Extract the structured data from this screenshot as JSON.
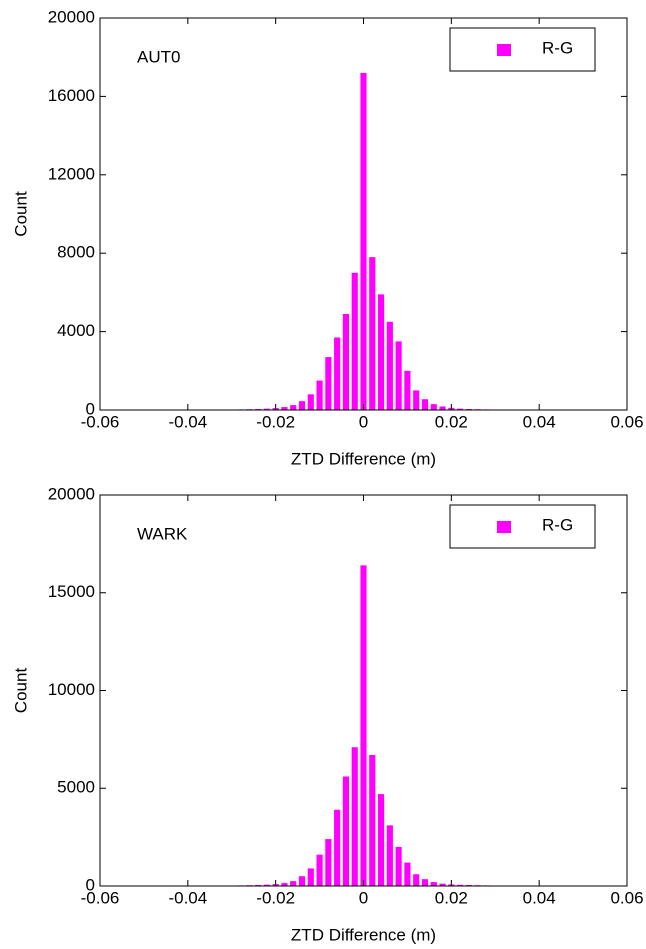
{
  "chart_data": [
    {
      "type": "histogram",
      "annotation": "AUT0",
      "xlabel": "ZTD Difference (m)",
      "ylabel": "Count",
      "bins": [
        -0.051,
        -0.049,
        -0.047,
        -0.045,
        -0.043,
        -0.041,
        -0.039,
        -0.037,
        -0.035,
        -0.033,
        -0.031,
        -0.029,
        -0.027,
        -0.025,
        -0.023,
        -0.021,
        -0.019,
        -0.017,
        -0.015,
        -0.013,
        -0.011,
        -0.009,
        -0.007,
        -0.005,
        -0.003,
        -0.001,
        0.001,
        0.003,
        0.005,
        0.007,
        0.009,
        0.011,
        0.013,
        0.015,
        0.017,
        0.019,
        0.021,
        0.023,
        0.025,
        0.027,
        0.029,
        0.031,
        0.033,
        0.035,
        0.037,
        0.039,
        0.041,
        0.043,
        0.045,
        0.047,
        0.049,
        0.051
      ],
      "series": [
        {
          "name": "R-G",
          "color": "#ff00ff",
          "values": [
            2,
            3,
            4,
            5,
            6,
            8,
            10,
            12,
            15,
            20,
            25,
            30,
            40,
            50,
            70,
            100,
            150,
            250,
            450,
            800,
            1500,
            2700,
            3700,
            4900,
            7000,
            17200,
            7800,
            5900,
            4500,
            3500,
            2000,
            1000,
            550,
            300,
            180,
            110,
            70,
            50,
            40,
            30,
            25,
            20,
            15,
            12,
            10,
            8,
            6,
            5,
            4,
            3,
            2
          ]
        }
      ],
      "xlim": [
        -0.06,
        0.06
      ],
      "xticks": [
        -0.06,
        -0.04,
        -0.02,
        0,
        0.02,
        0.04,
        0.06
      ],
      "ylim": [
        0,
        20000
      ],
      "yticks": [
        0,
        4000,
        8000,
        12000,
        16000,
        20000
      ]
    },
    {
      "type": "histogram",
      "annotation": "WARK",
      "xlabel": "ZTD Difference (m)",
      "ylabel": "Count",
      "bins": [
        -0.051,
        -0.049,
        -0.047,
        -0.045,
        -0.043,
        -0.041,
        -0.039,
        -0.037,
        -0.035,
        -0.033,
        -0.031,
        -0.029,
        -0.027,
        -0.025,
        -0.023,
        -0.021,
        -0.019,
        -0.017,
        -0.015,
        -0.013,
        -0.011,
        -0.009,
        -0.007,
        -0.005,
        -0.003,
        -0.001,
        0.001,
        0.003,
        0.005,
        0.007,
        0.009,
        0.011,
        0.013,
        0.015,
        0.017,
        0.019,
        0.021,
        0.023,
        0.025,
        0.027,
        0.029,
        0.031,
        0.033,
        0.035,
        0.037,
        0.039,
        0.041,
        0.043,
        0.045,
        0.047,
        0.049,
        0.051
      ],
      "series": [
        {
          "name": "R-G",
          "color": "#ff00ff",
          "values": [
            2,
            3,
            4,
            5,
            6,
            8,
            10,
            12,
            15,
            20,
            25,
            30,
            40,
            50,
            70,
            100,
            150,
            250,
            500,
            900,
            1600,
            2400,
            3900,
            5600,
            7100,
            16400,
            6700,
            4700,
            3100,
            2000,
            1200,
            600,
            350,
            200,
            120,
            80,
            60,
            50,
            40,
            30,
            25,
            20,
            15,
            12,
            10,
            8,
            6,
            5,
            4,
            3,
            2
          ]
        }
      ],
      "xlim": [
        -0.06,
        0.06
      ],
      "xticks": [
        -0.06,
        -0.04,
        -0.02,
        0,
        0.02,
        0.04,
        0.06
      ],
      "ylim": [
        0,
        20000
      ],
      "yticks": [
        0,
        5000,
        10000,
        15000,
        20000
      ]
    }
  ]
}
